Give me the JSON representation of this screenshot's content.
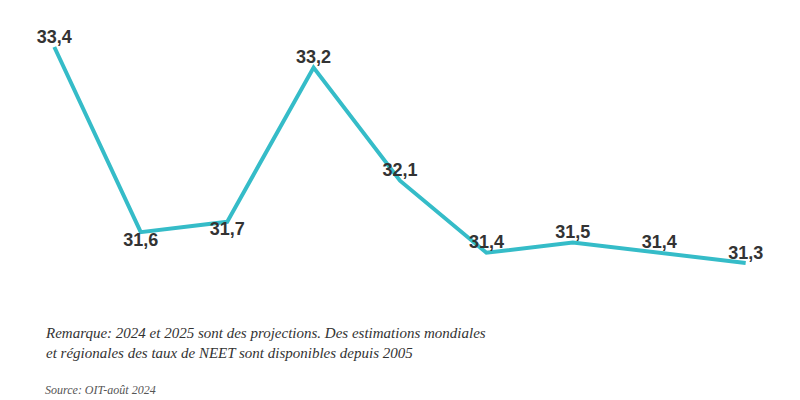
{
  "chart_data": {
    "type": "line",
    "categories": [
      null,
      null,
      null,
      null,
      null,
      null,
      null,
      null,
      null
    ],
    "values": [
      33.4,
      31.6,
      31.7,
      33.2,
      32.1,
      31.4,
      31.5,
      31.4,
      31.3
    ],
    "value_labels": [
      "33,4",
      "31,6",
      "31,7",
      "33,2",
      "32,1",
      "31,4",
      "31,5",
      "31,4",
      "31,3"
    ],
    "color": "#35bcc8",
    "data_labels": true,
    "tick_labels": false,
    "grid": false,
    "notes": [
      "Remarque: 2024 et 2025 sont des projections. Des estimations mondiales",
      "et régionales des taux de NEET sont disponibles depuis 2005"
    ],
    "source": "Source: OIT-août 2024"
  }
}
